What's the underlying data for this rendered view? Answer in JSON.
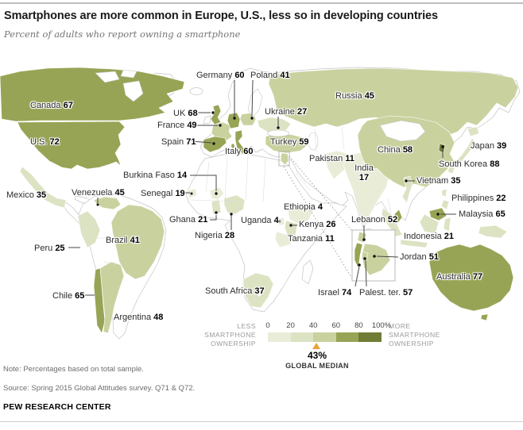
{
  "header": {
    "title": "Smartphones are more common in Europe, U.S., less so in developing countries",
    "subtitle": "Percent of adults who report owning a smartphone"
  },
  "chart_data": {
    "type": "heatmap",
    "subtype": "choropleth-world-map",
    "title": "Smartphones are more common in Europe, U.S., less so in developing countries",
    "unit": "Percent of adults who report owning a smartphone",
    "countries": [
      {
        "id": "canada",
        "name": "Canada",
        "value": 67,
        "bracket": "b4"
      },
      {
        "id": "us",
        "name": "U.S.",
        "value": 72,
        "bracket": "b4"
      },
      {
        "id": "mexico",
        "name": "Mexico",
        "value": 35,
        "bracket": "b2"
      },
      {
        "id": "venezuela",
        "name": "Venezuela",
        "value": 45,
        "bracket": "b3"
      },
      {
        "id": "peru",
        "name": "Peru",
        "value": 25,
        "bracket": "b2"
      },
      {
        "id": "brazil",
        "name": "Brazil",
        "value": 41,
        "bracket": "b3"
      },
      {
        "id": "chile",
        "name": "Chile",
        "value": 65,
        "bracket": "b4"
      },
      {
        "id": "argentina",
        "name": "Argentina",
        "value": 48,
        "bracket": "b3"
      },
      {
        "id": "uk",
        "name": "UK",
        "value": 68,
        "bracket": "b4"
      },
      {
        "id": "france",
        "name": "France",
        "value": 49,
        "bracket": "b3"
      },
      {
        "id": "spain",
        "name": "Spain",
        "value": 71,
        "bracket": "b4"
      },
      {
        "id": "italy",
        "name": "Italy",
        "value": 60,
        "bracket": "b4"
      },
      {
        "id": "germany",
        "name": "Germany",
        "value": 60,
        "bracket": "b4"
      },
      {
        "id": "poland",
        "name": "Poland",
        "value": 41,
        "bracket": "b3"
      },
      {
        "id": "ukraine",
        "name": "Ukraine",
        "value": 27,
        "bracket": "b2"
      },
      {
        "id": "russia",
        "name": "Russia",
        "value": 45,
        "bracket": "b3"
      },
      {
        "id": "turkey",
        "name": "Turkey",
        "value": 59,
        "bracket": "b3"
      },
      {
        "id": "pakistan",
        "name": "Pakistan",
        "value": 11,
        "bracket": "b1"
      },
      {
        "id": "india",
        "name": "India",
        "value": 17,
        "bracket": "b1"
      },
      {
        "id": "china",
        "name": "China",
        "value": 58,
        "bracket": "b3"
      },
      {
        "id": "japan",
        "name": "Japan",
        "value": 39,
        "bracket": "b2"
      },
      {
        "id": "southkorea",
        "name": "South Korea",
        "value": 88,
        "bracket": "b5"
      },
      {
        "id": "vietnam",
        "name": "Vietnam",
        "value": 35,
        "bracket": "b2"
      },
      {
        "id": "philippines",
        "name": "Philippines",
        "value": 22,
        "bracket": "b2"
      },
      {
        "id": "malaysia",
        "name": "Malaysia",
        "value": 65,
        "bracket": "b4"
      },
      {
        "id": "indonesia",
        "name": "Indonesia",
        "value": 21,
        "bracket": "b2"
      },
      {
        "id": "australia",
        "name": "Australia",
        "value": 77,
        "bracket": "b4"
      },
      {
        "id": "burkinafaso",
        "name": "Burkina Faso",
        "value": 14,
        "bracket": "b1"
      },
      {
        "id": "senegal",
        "name": "Senegal",
        "value": 19,
        "bracket": "b1"
      },
      {
        "id": "ghana",
        "name": "Ghana",
        "value": 21,
        "bracket": "b2"
      },
      {
        "id": "nigeria",
        "name": "Nigeria",
        "value": 28,
        "bracket": "b2"
      },
      {
        "id": "uganda",
        "name": "Uganda",
        "value": 4,
        "bracket": "b1"
      },
      {
        "id": "ethiopia",
        "name": "Ethiopia",
        "value": 4,
        "bracket": "b1"
      },
      {
        "id": "kenya",
        "name": "Kenya",
        "value": 26,
        "bracket": "b2"
      },
      {
        "id": "tanzania",
        "name": "Tanzania",
        "value": 11,
        "bracket": "b1"
      },
      {
        "id": "southafrica",
        "name": "South Africa",
        "value": 37,
        "bracket": "b2"
      },
      {
        "id": "lebanon",
        "name": "Lebanon",
        "value": 52,
        "bracket": "b3"
      },
      {
        "id": "jordan",
        "name": "Jordan",
        "value": 51,
        "bracket": "b3"
      },
      {
        "id": "israel",
        "name": "Israel",
        "value": 74,
        "bracket": "b4"
      },
      {
        "id": "palest",
        "name": "Palest. ter.",
        "value": 57,
        "bracket": "b3"
      }
    ],
    "legend": {
      "ticks": [
        "0",
        "20",
        "40",
        "60",
        "80",
        "100%"
      ],
      "bracket_ranges": [
        "0-20",
        "20-40",
        "40-60",
        "60-80",
        "80-100"
      ],
      "bracket_colors": {
        "b1": "#e9edd8",
        "b2": "#dce3c3",
        "b3": "#c9d29f",
        "b4": "#98a455",
        "b5": "#6f7c35"
      },
      "less_lines": [
        "LESS",
        "SMARTPHONE",
        "OWNERSHIP"
      ],
      "more_lines": [
        "MORE",
        "SMARTPHONE",
        "OWNERSHIP"
      ],
      "arrow_color": "#e8a33c"
    },
    "median": {
      "value": 43,
      "display": "43%",
      "label": "GLOBAL MEDIAN"
    }
  },
  "footer": {
    "note": "Note: Percentages based on total sample.",
    "source": "Source: Spring 2015 Global Attitudes survey. Q71 & Q72.",
    "brand": "PEW RESEARCH CENTER"
  }
}
